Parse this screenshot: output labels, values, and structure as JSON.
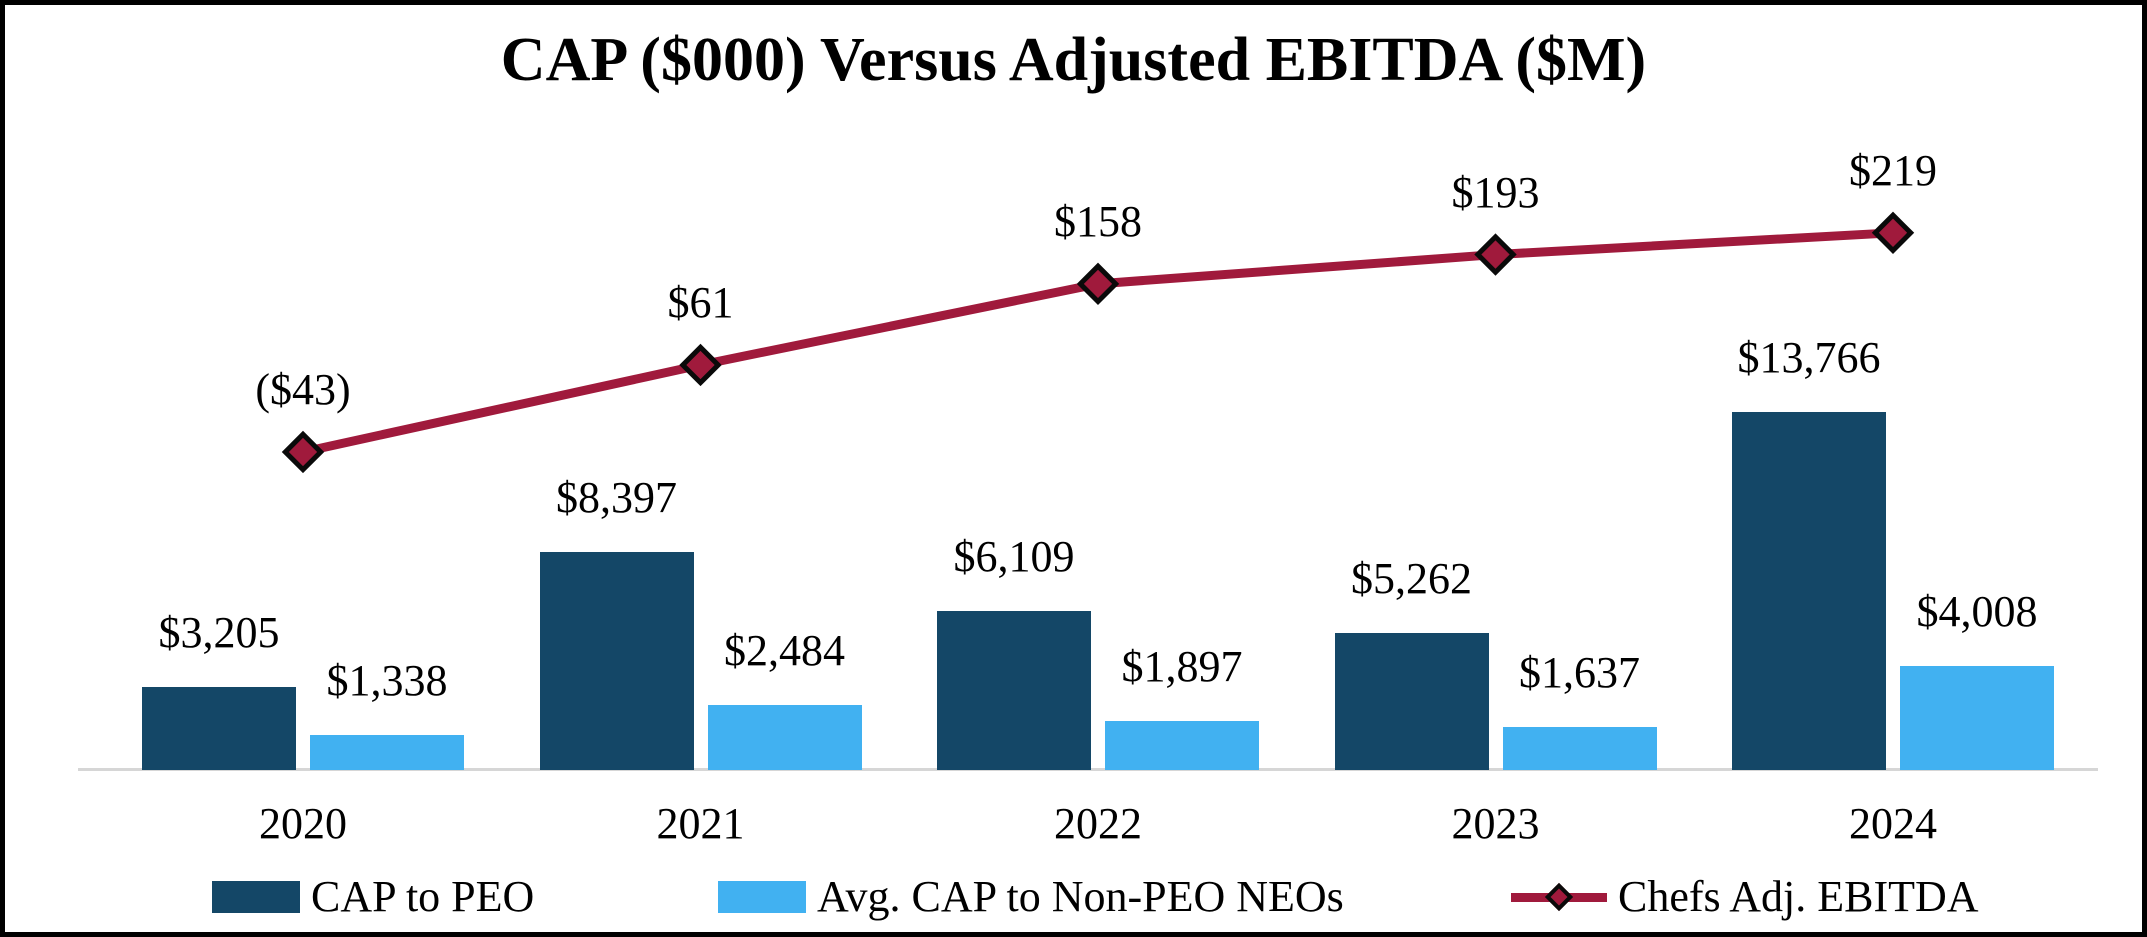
{
  "chart_data": {
    "type": "bar+line",
    "title": "CAP ($000) Versus Adjusted EBITDA ($M)",
    "categories": [
      "2020",
      "2021",
      "2022",
      "2023",
      "2024"
    ],
    "series": [
      {
        "name": "CAP to PEO",
        "type": "bar",
        "color": "#144767",
        "values": [
          3205,
          8397,
          6109,
          5262,
          13766
        ],
        "labels": [
          "$3,205",
          "$8,397",
          "$6,109",
          "$5,262",
          "$13,766"
        ]
      },
      {
        "name": "Avg. CAP to Non-PEO NEOs",
        "type": "bar",
        "color": "#41B1F1",
        "values": [
          1338,
          2484,
          1897,
          1637,
          4008
        ],
        "labels": [
          "$1,338",
          "$2,484",
          "$1,897",
          "$1,637",
          "$4,008"
        ]
      },
      {
        "name": "Chefs Adj. EBITDA",
        "type": "line",
        "color": "#A01A3C",
        "marker": "diamond",
        "marker_outline": "#0a0a0a",
        "values": [
          -43,
          61,
          158,
          193,
          219
        ],
        "labels": [
          "($43)",
          "$61",
          "$158",
          "$193",
          "$219"
        ]
      }
    ],
    "ylabel": "",
    "xlabel": "",
    "gridlines": false,
    "y_axis_visible": false,
    "baseline_color": "#d6d6d6",
    "legend_position": "bottom"
  }
}
